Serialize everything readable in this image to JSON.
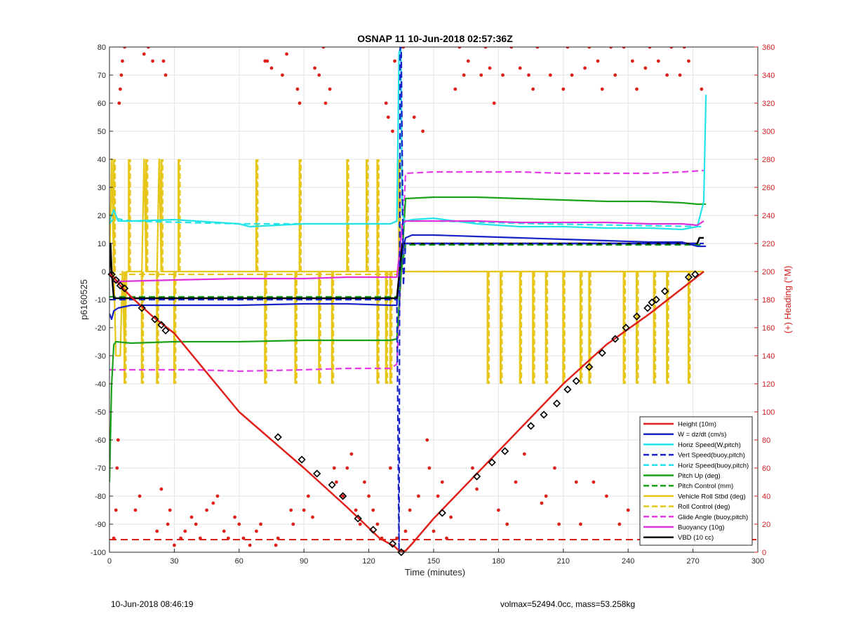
{
  "footer": {
    "left": "10-Jun-2018 08:46:19",
    "right": "volmax=52494.0cc, mass=53.258kg"
  },
  "chart_data": {
    "type": "line",
    "title": "OSNAP 11 10-Jun-2018 02:57:36Z",
    "xlabel": "Time (minutes)",
    "ylabel": "p6160525",
    "y2label": "(+) Heading (°M)",
    "xlim": [
      0,
      300
    ],
    "ylim": [
      -100,
      80
    ],
    "y2lim": [
      0,
      360
    ],
    "xticks": [
      0,
      30,
      60,
      90,
      120,
      150,
      180,
      210,
      240,
      270,
      300
    ],
    "yticks": [
      -100,
      -90,
      -80,
      -70,
      -60,
      -50,
      -40,
      -30,
      -20,
      -10,
      0,
      10,
      20,
      30,
      40,
      50,
      60,
      70,
      80
    ],
    "y2ticks": [
      0,
      20,
      40,
      60,
      80,
      100,
      120,
      140,
      160,
      180,
      200,
      220,
      240,
      260,
      280,
      300,
      320,
      340,
      360
    ],
    "grid": true,
    "legend_position": "bottom-right",
    "colors": {
      "height": "#e0201b",
      "w": "#1722c8",
      "horiz": "#22e3e8",
      "pitch": "#1aa21a",
      "roll": "#e6c619",
      "glide": "#e63ae6",
      "buoy": "#e030d8",
      "vbd": "#000000",
      "heading": "#e0201b",
      "marker": "#000000"
    },
    "series": [
      {
        "name": "Height (10m)",
        "key": "height",
        "style": "solid",
        "color": "#e0201b",
        "x": [
          0,
          2,
          5,
          10,
          20,
          30,
          60,
          90,
          110,
          125,
          132,
          134,
          137,
          140,
          150,
          170,
          190,
          210,
          230,
          250,
          265,
          275
        ],
        "y": [
          -1,
          -2,
          -5,
          -9,
          -16,
          -22,
          -50,
          -70,
          -84,
          -95,
          -98,
          -99.5,
          -99.5,
          -97,
          -88,
          -72,
          -56,
          -40,
          -26,
          -15,
          -6,
          0
        ]
      },
      {
        "name": "W = dz/dt (cm/s)",
        "key": "w",
        "style": "solid",
        "color": "#1722c8",
        "x": [
          0,
          1,
          2,
          4,
          10,
          30,
          60,
          90,
          110,
          130,
          133,
          135,
          137,
          140,
          150,
          170,
          190,
          210,
          230,
          250,
          265,
          272,
          276
        ],
        "y": [
          -15,
          -17,
          -14,
          -13,
          -12,
          -12,
          -12,
          -11.5,
          -11.5,
          -12,
          -12,
          5,
          12,
          13,
          13,
          12.5,
          12,
          11.5,
          11,
          10.5,
          10.5,
          9,
          9
        ]
      },
      {
        "name": "Horiz Speed(W,pitch)",
        "key": "horiz",
        "style": "solid",
        "color": "#22e3e8",
        "x": [
          0,
          2,
          4,
          10,
          30,
          50,
          60,
          65,
          90,
          110,
          130,
          133,
          134,
          134.8,
          135.5,
          137,
          140,
          150,
          170,
          190,
          210,
          230,
          250,
          265,
          272,
          275,
          276
        ],
        "y": [
          18,
          22,
          18,
          18,
          18.5,
          17.5,
          17,
          16,
          17,
          17,
          17,
          18,
          78,
          80,
          20,
          18,
          18.5,
          19,
          17,
          16,
          16,
          15.5,
          15.5,
          15,
          16,
          25,
          63
        ]
      },
      {
        "name": "Vert Speed(buoy,pitch)",
        "key": "vspeed",
        "style": "dashed",
        "color": "#1722c8",
        "x": [
          0,
          1,
          130,
          133,
          134,
          134.5,
          135,
          136,
          137,
          140,
          200,
          275
        ],
        "y": [
          -10,
          -10,
          -10,
          -10,
          -100,
          80,
          80,
          -5,
          10,
          10,
          10,
          10
        ]
      },
      {
        "name": "Horiz Speed(buoy,pitch)",
        "key": "hspeed_b",
        "style": "dashed",
        "color": "#22e3e8",
        "x": [
          0,
          2,
          10,
          60,
          130,
          133,
          135,
          137,
          150,
          200,
          275
        ],
        "y": [
          17,
          19,
          18,
          17,
          17,
          18,
          15,
          18,
          18,
          17,
          16
        ]
      },
      {
        "name": "Pitch Up (deg)",
        "key": "pitch",
        "style": "solid",
        "color": "#1aa21a",
        "x": [
          0,
          1,
          2,
          3,
          10,
          30,
          60,
          90,
          110,
          130,
          133,
          135,
          137,
          150,
          170,
          190,
          210,
          230,
          250,
          265,
          272,
          276
        ],
        "y": [
          -75,
          -40,
          -26,
          -25,
          -25.5,
          -25,
          -25,
          -24.5,
          -24.5,
          -24.5,
          -24,
          0,
          26,
          26.5,
          26.5,
          26,
          25.5,
          25,
          25,
          24.5,
          24,
          24
        ]
      },
      {
        "name": "Pitch Control (mm)",
        "key": "pitchc",
        "style": "dashed",
        "color": "#1aa21a",
        "x": [
          0,
          2,
          60,
          133,
          135,
          137,
          200,
          275
        ],
        "y": [
          -9,
          -9,
          -9,
          -9,
          0,
          9.5,
          9.5,
          9.5
        ]
      },
      {
        "name": "Vehicle Roll Stbd (deg)",
        "key": "roll",
        "style": "solid",
        "color": "#e6c619",
        "x": [
          0,
          1,
          2,
          3,
          5,
          6,
          7,
          8,
          9,
          15,
          16,
          17,
          18,
          22,
          23,
          24,
          25,
          26,
          35,
          60,
          90,
          100,
          130,
          133,
          135,
          137,
          140,
          160,
          190,
          220,
          250,
          270,
          275
        ],
        "y": [
          0,
          40,
          0,
          -30,
          -30,
          0,
          -30,
          0,
          0,
          0,
          40,
          0,
          0,
          0,
          40,
          0,
          0,
          0,
          0,
          0,
          0,
          0,
          0,
          0,
          0,
          0,
          0,
          0,
          0,
          0,
          0,
          0,
          0
        ]
      },
      {
        "name": "Roll Control (deg)",
        "key": "rollc",
        "style": "dashed",
        "color": "#e6c619",
        "x": [
          0,
          2,
          60,
          133,
          135,
          137,
          200,
          275
        ],
        "y": [
          -1,
          -1,
          -1,
          -1,
          0,
          0,
          0,
          0
        ]
      },
      {
        "name": "Glide Angle (buoy,pitch)",
        "key": "glide",
        "style": "dashed",
        "color": "#e63ae6",
        "x": [
          0,
          2,
          10,
          40,
          60,
          90,
          110,
          130,
          133,
          135,
          137,
          150,
          170,
          190,
          210,
          230,
          250,
          265,
          275
        ],
        "y": [
          -35,
          -35,
          -35,
          -35,
          -35.5,
          -35,
          -34.5,
          -34.5,
          -33,
          0,
          35,
          35.5,
          35.5,
          35.5,
          35,
          35,
          35,
          35.5,
          36
        ]
      },
      {
        "name": "Buoyancy (10g)",
        "key": "buoy",
        "style": "solid",
        "color": "#e030d8",
        "x": [
          0,
          1,
          2,
          5,
          30,
          60,
          90,
          110,
          130,
          133,
          134,
          135.5,
          137,
          150,
          170,
          190,
          210,
          230,
          250,
          265,
          272,
          275
        ],
        "y": [
          0,
          -2,
          -3.5,
          -3.5,
          -3,
          -2.5,
          -2.5,
          -2,
          -2,
          -2,
          5,
          17,
          18,
          18,
          18,
          17.5,
          17.5,
          17.5,
          17,
          17,
          16.5,
          18
        ]
      },
      {
        "name": "VBD (10 cc)",
        "key": "vbd",
        "style": "solid",
        "color": "#000000",
        "x": [
          0,
          0.5,
          1,
          2,
          5,
          30,
          60,
          90,
          110,
          130,
          133,
          135.5,
          137,
          150,
          170,
          190,
          210,
          230,
          250,
          265,
          272,
          273,
          275
        ],
        "y": [
          0,
          10,
          0,
          -9.5,
          -9.5,
          -9.5,
          -9.5,
          -9.5,
          -9.5,
          -9.5,
          -9.5,
          10,
          10,
          10,
          10,
          10,
          10,
          10,
          10,
          10,
          10,
          12,
          12
        ]
      }
    ],
    "roll_spikes": {
      "up": [
        2,
        9,
        17,
        24,
        32,
        68,
        88,
        110,
        119,
        124,
        134
      ],
      "down": [
        7,
        15,
        22,
        30,
        72,
        86,
        97,
        103,
        124,
        128,
        130,
        175,
        181,
        190,
        196,
        202,
        210,
        218,
        222,
        238,
        244,
        252,
        258,
        268
      ]
    },
    "height_markers": {
      "x": [
        1,
        3,
        5,
        7,
        15,
        21,
        24,
        26,
        78,
        89,
        96,
        103,
        108,
        115,
        122,
        131,
        135,
        154,
        170,
        177,
        183,
        195,
        201,
        207,
        212,
        216,
        222,
        228,
        234,
        239,
        244,
        249,
        251,
        253,
        257,
        268,
        271
      ],
      "y": [
        -1,
        -3,
        -5,
        -6,
        -13,
        -17,
        -19,
        -21,
        -59,
        -67,
        -72,
        -76,
        -80,
        -88,
        -92,
        -97,
        -100,
        -86,
        -73,
        -68,
        -64,
        -55,
        -51,
        -47,
        -42,
        -39,
        -34,
        -29,
        -24,
        -20,
        -16,
        -13,
        -11,
        -10,
        -7,
        -2,
        -1
      ]
    },
    "heading_points": {
      "x": [
        2,
        3,
        3.5,
        4,
        4.5,
        5,
        5.5,
        6,
        7,
        12,
        14,
        16,
        18,
        20,
        22,
        24,
        25,
        26,
        27,
        28,
        30,
        33,
        35,
        38,
        40,
        42,
        45,
        48,
        50,
        53,
        55,
        58,
        60,
        62,
        65,
        68,
        70,
        72,
        73,
        75,
        77,
        78,
        80,
        82,
        84,
        85,
        87,
        88,
        90,
        92,
        94,
        95,
        97,
        99,
        100,
        102,
        104,
        105,
        108,
        110,
        112,
        114,
        116,
        118,
        120,
        122,
        124,
        126,
        128,
        129,
        130,
        131,
        132,
        133,
        136,
        137,
        139,
        141,
        143,
        145,
        147,
        148,
        150,
        152,
        154,
        156,
        158,
        160,
        162,
        164,
        166,
        168,
        170,
        172,
        174,
        176,
        178,
        180,
        182,
        184,
        186,
        188,
        190,
        192,
        194,
        196,
        198,
        200,
        202,
        204,
        206,
        208,
        210,
        212,
        214,
        216,
        218,
        220,
        222,
        224,
        226,
        228,
        230,
        232,
        234,
        236,
        238,
        240,
        242,
        244,
        246,
        248,
        250,
        252,
        254,
        256,
        258,
        260,
        262,
        264,
        266,
        268,
        270,
        272,
        274,
        275
      ],
      "y": [
        10,
        30,
        60,
        80,
        320,
        330,
        340,
        350,
        360,
        30,
        40,
        355,
        360,
        350,
        15,
        45,
        350,
        340,
        20,
        30,
        5,
        10,
        15,
        25,
        20,
        10,
        30,
        35,
        40,
        15,
        10,
        25,
        20,
        10,
        5,
        15,
        20,
        350,
        350,
        345,
        5,
        10,
        340,
        355,
        30,
        20,
        330,
        320,
        30,
        40,
        25,
        345,
        340,
        360,
        320,
        330,
        60,
        50,
        40,
        60,
        70,
        30,
        20,
        50,
        40,
        30,
        20,
        10,
        320,
        310,
        60,
        300,
        350,
        10,
        360,
        15,
        30,
        310,
        40,
        300,
        80,
        60,
        15,
        40,
        50,
        10,
        25,
        330,
        360,
        340,
        350,
        60,
        45,
        340,
        360,
        345,
        320,
        30,
        340,
        20,
        360,
        50,
        345,
        70,
        340,
        330,
        360,
        35,
        40,
        340,
        60,
        20,
        330,
        360,
        340,
        50,
        20,
        345,
        360,
        50,
        350,
        330,
        40,
        360,
        340,
        20,
        360,
        30,
        350,
        330,
        40,
        345,
        360,
        20,
        350,
        50,
        340,
        360,
        30,
        340,
        360,
        350,
        30,
        20,
        330,
        10
      ]
    },
    "heading_reference": {
      "name": "",
      "y2": 9
    }
  }
}
